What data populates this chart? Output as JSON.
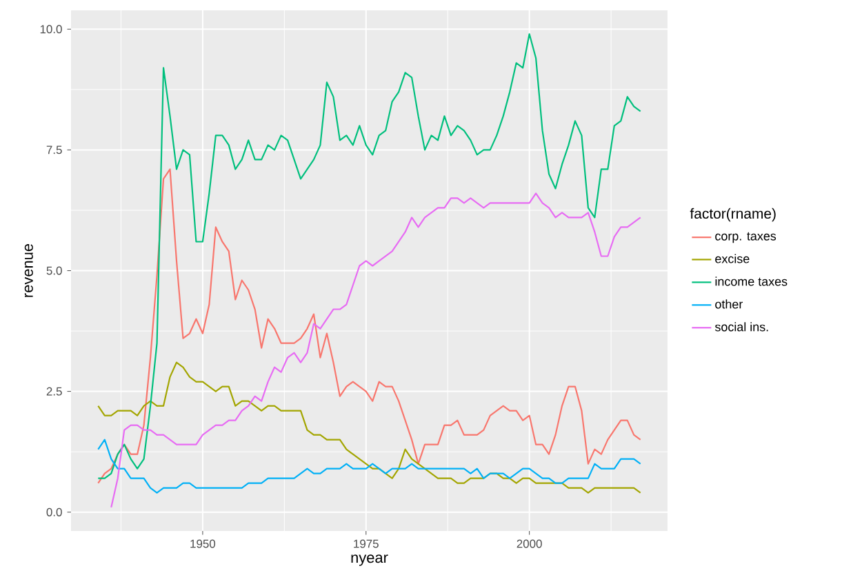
{
  "chart_data": {
    "type": "line",
    "xlabel": "nyear",
    "ylabel": "revenue",
    "legend_title": "factor(rname)",
    "x": [
      1934,
      1935,
      1936,
      1937,
      1938,
      1939,
      1940,
      1941,
      1942,
      1943,
      1944,
      1945,
      1946,
      1947,
      1948,
      1949,
      1950,
      1951,
      1952,
      1953,
      1954,
      1955,
      1956,
      1957,
      1958,
      1959,
      1960,
      1961,
      1962,
      1963,
      1964,
      1965,
      1966,
      1967,
      1968,
      1969,
      1970,
      1971,
      1972,
      1973,
      1974,
      1975,
      1976,
      1977,
      1978,
      1979,
      1980,
      1981,
      1982,
      1983,
      1984,
      1985,
      1986,
      1987,
      1988,
      1989,
      1990,
      1991,
      1992,
      1993,
      1994,
      1995,
      1996,
      1997,
      1998,
      1999,
      2000,
      2001,
      2002,
      2003,
      2004,
      2005,
      2006,
      2007,
      2008,
      2009,
      2010,
      2011,
      2012,
      2013,
      2014,
      2015,
      2016,
      2017
    ],
    "series": [
      {
        "name": "corp. taxes",
        "color": "#f8766d",
        "values": [
          0.6,
          0.8,
          0.9,
          1.2,
          1.4,
          1.2,
          1.2,
          1.8,
          3.2,
          4.9,
          6.9,
          7.1,
          5.2,
          3.6,
          3.7,
          4.0,
          3.7,
          4.3,
          5.9,
          5.6,
          5.4,
          4.4,
          4.8,
          4.6,
          4.2,
          3.4,
          4.0,
          3.8,
          3.5,
          3.5,
          3.5,
          3.6,
          3.8,
          4.1,
          3.2,
          3.7,
          3.1,
          2.4,
          2.6,
          2.7,
          2.6,
          2.5,
          2.3,
          2.7,
          2.6,
          2.6,
          2.3,
          1.9,
          1.5,
          1.0,
          1.4,
          1.4,
          1.4,
          1.8,
          1.8,
          1.9,
          1.6,
          1.6,
          1.6,
          1.7,
          2.0,
          2.1,
          2.2,
          2.1,
          2.1,
          1.9,
          2.0,
          1.4,
          1.4,
          1.2,
          1.6,
          2.2,
          2.6,
          2.6,
          2.1,
          1.0,
          1.3,
          1.2,
          1.5,
          1.7,
          1.9,
          1.9,
          1.6,
          1.5
        ]
      },
      {
        "name": "excise",
        "color": "#a3a500",
        "values": [
          2.2,
          2.0,
          2.0,
          2.1,
          2.1,
          2.1,
          2.0,
          2.2,
          2.3,
          2.2,
          2.2,
          2.8,
          3.1,
          3.0,
          2.8,
          2.7,
          2.7,
          2.6,
          2.5,
          2.6,
          2.6,
          2.2,
          2.3,
          2.3,
          2.2,
          2.1,
          2.2,
          2.2,
          2.1,
          2.1,
          2.1,
          2.1,
          1.7,
          1.6,
          1.6,
          1.5,
          1.5,
          1.5,
          1.3,
          1.2,
          1.1,
          1.0,
          0.9,
          0.9,
          0.8,
          0.7,
          0.9,
          1.3,
          1.1,
          1.0,
          0.9,
          0.8,
          0.7,
          0.7,
          0.7,
          0.6,
          0.6,
          0.7,
          0.7,
          0.7,
          0.8,
          0.8,
          0.7,
          0.7,
          0.6,
          0.7,
          0.7,
          0.6,
          0.6,
          0.6,
          0.6,
          0.6,
          0.5,
          0.5,
          0.5,
          0.4,
          0.5,
          0.5,
          0.5,
          0.5,
          0.5,
          0.5,
          0.5,
          0.4
        ]
      },
      {
        "name": "income taxes",
        "color": "#00bf7d",
        "values": [
          0.7,
          0.7,
          0.8,
          1.2,
          1.4,
          1.1,
          0.9,
          1.1,
          2.2,
          3.5,
          9.2,
          8.2,
          7.1,
          7.5,
          7.4,
          5.6,
          5.6,
          6.6,
          7.8,
          7.8,
          7.6,
          7.1,
          7.3,
          7.7,
          7.3,
          7.3,
          7.6,
          7.5,
          7.8,
          7.7,
          7.3,
          6.9,
          7.1,
          7.3,
          7.6,
          8.9,
          8.6,
          7.7,
          7.8,
          7.6,
          8.0,
          7.6,
          7.4,
          7.8,
          7.9,
          8.5,
          8.7,
          9.1,
          9.0,
          8.2,
          7.5,
          7.8,
          7.7,
          8.2,
          7.8,
          8.0,
          7.9,
          7.7,
          7.4,
          7.5,
          7.5,
          7.8,
          8.2,
          8.7,
          9.3,
          9.2,
          9.9,
          9.4,
          7.9,
          7.0,
          6.7,
          7.2,
          7.6,
          8.1,
          7.8,
          6.3,
          6.1,
          7.1,
          7.1,
          8.0,
          8.1,
          8.6,
          8.4,
          8.3
        ]
      },
      {
        "name": "other",
        "color": "#00b0f6",
        "values": [
          1.3,
          1.5,
          1.1,
          0.9,
          0.9,
          0.7,
          0.7,
          0.7,
          0.5,
          0.4,
          0.5,
          0.5,
          0.5,
          0.6,
          0.6,
          0.5,
          0.5,
          0.5,
          0.5,
          0.5,
          0.5,
          0.5,
          0.5,
          0.6,
          0.6,
          0.6,
          0.7,
          0.7,
          0.7,
          0.7,
          0.7,
          0.8,
          0.9,
          0.8,
          0.8,
          0.9,
          0.9,
          0.9,
          1.0,
          0.9,
          0.9,
          0.9,
          1.0,
          0.9,
          0.8,
          0.9,
          0.9,
          0.9,
          1.0,
          0.9,
          0.9,
          0.9,
          0.9,
          0.9,
          0.9,
          0.9,
          0.9,
          0.8,
          0.9,
          0.7,
          0.8,
          0.8,
          0.8,
          0.7,
          0.8,
          0.9,
          0.9,
          0.8,
          0.7,
          0.7,
          0.6,
          0.6,
          0.7,
          0.7,
          0.7,
          0.7,
          1.0,
          0.9,
          0.9,
          0.9,
          1.1,
          1.1,
          1.1,
          1.0
        ]
      },
      {
        "name": "social ins.",
        "color": "#e76bf3",
        "values": [
          null,
          null,
          0.1,
          0.7,
          1.7,
          1.8,
          1.8,
          1.7,
          1.7,
          1.6,
          1.6,
          1.5,
          1.4,
          1.4,
          1.4,
          1.4,
          1.6,
          1.7,
          1.8,
          1.8,
          1.9,
          1.9,
          2.1,
          2.2,
          2.4,
          2.3,
          2.7,
          3.0,
          2.9,
          3.2,
          3.3,
          3.1,
          3.3,
          3.9,
          3.8,
          4.0,
          4.2,
          4.2,
          4.3,
          4.7,
          5.1,
          5.2,
          5.1,
          5.2,
          5.3,
          5.4,
          5.6,
          5.8,
          6.1,
          5.9,
          6.1,
          6.2,
          6.3,
          6.3,
          6.5,
          6.5,
          6.4,
          6.5,
          6.4,
          6.3,
          6.4,
          6.4,
          6.4,
          6.4,
          6.4,
          6.4,
          6.4,
          6.6,
          6.4,
          6.3,
          6.1,
          6.2,
          6.1,
          6.1,
          6.1,
          6.2,
          5.8,
          5.3,
          5.3,
          5.7,
          5.9,
          5.9,
          6.0,
          6.1
        ]
      }
    ],
    "xlim": [
      1929.85,
      2021.15
    ],
    "ylim": [
      -0.39,
      10.39
    ],
    "xticks": [
      1950,
      1975,
      2000
    ],
    "yticks": [
      {
        "value": 0,
        "label": "0.0"
      },
      {
        "value": 2.5,
        "label": "2.5"
      },
      {
        "value": 5,
        "label": "5.0"
      },
      {
        "value": 7.5,
        "label": "7.5"
      },
      {
        "value": 10,
        "label": "10.0"
      }
    ],
    "grid": true,
    "legend": "right",
    "marker": "none",
    "line_style": "solid"
  }
}
